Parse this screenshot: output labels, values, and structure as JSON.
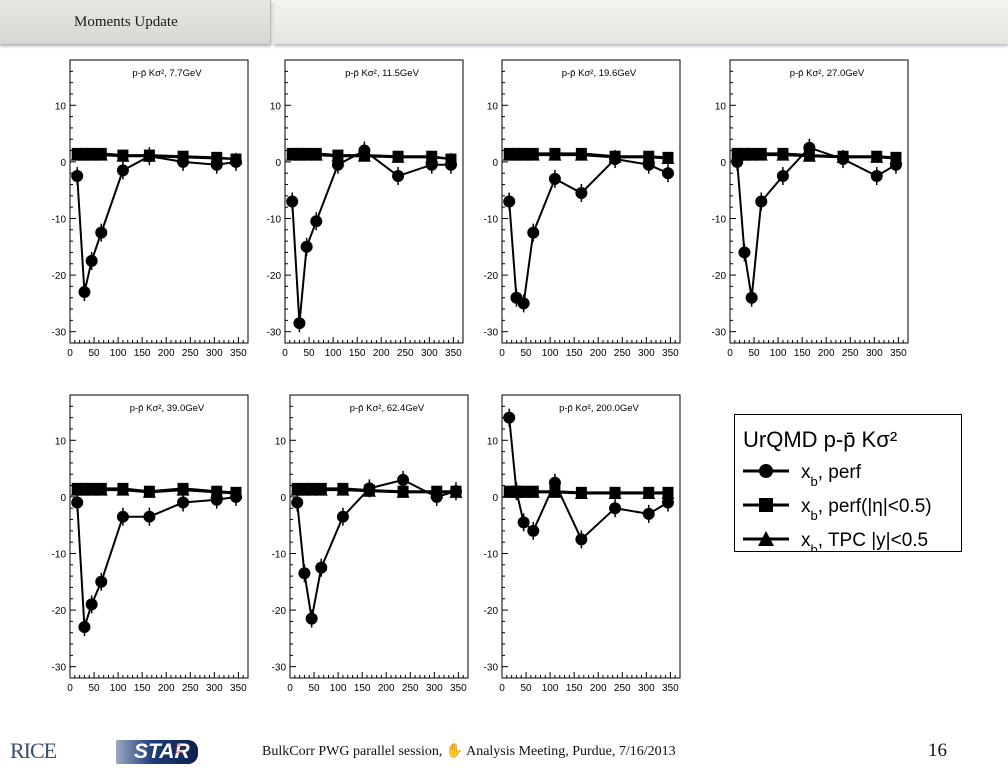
{
  "header": {
    "title": "Moments Update"
  },
  "footer": {
    "logo_left": "RICE",
    "logo_right": "STAR",
    "text": "BulkCorr PWG parallel session,  ✋  Analysis Meeting,  Purdue,  7/16/2013",
    "page": "16"
  },
  "legend": {
    "title": "UrQMD p-p̄ Kσ²",
    "entries": [
      {
        "marker": "circle",
        "html": "x<tspan baseline-shift=\"sub\" font-size=\"13\">b</tspan>, perf"
      },
      {
        "marker": "square",
        "html": "x<tspan baseline-shift=\"sub\" font-size=\"13\">b</tspan>, perf(|η|&lt;0.5)"
      },
      {
        "marker": "triangle",
        "html": "x<tspan baseline-shift=\"sub\" font-size=\"13\">b</tspan>, TPC |y|&lt;0.5"
      }
    ]
  },
  "chart_data": [
    {
      "type": "scatter",
      "title": "p-p̄ Kσ², 7.7GeV",
      "xlim": [
        0,
        370
      ],
      "ylim": [
        -32,
        18
      ],
      "xticks": [
        0,
        50,
        100,
        150,
        200,
        250,
        300,
        350
      ],
      "yticks": [
        -30,
        -20,
        -10,
        0,
        10
      ],
      "series": [
        {
          "marker": "circle",
          "x": [
            15,
            30,
            45,
            65,
            110,
            165,
            235,
            305,
            345
          ],
          "y": [
            -2.5,
            -23,
            -17.5,
            -12.5,
            -1.5,
            1,
            0,
            -0.5,
            0
          ]
        },
        {
          "marker": "square",
          "x": [
            15,
            30,
            45,
            65,
            110,
            165,
            235,
            305,
            345
          ],
          "y": [
            1.5,
            1.5,
            1.5,
            1.5,
            1.2,
            1.2,
            1,
            0.8,
            0.5
          ]
        },
        {
          "marker": "triangle",
          "x": [
            15,
            30,
            45,
            65,
            110,
            165,
            235,
            305,
            345
          ],
          "y": [
            1.2,
            1.2,
            1.2,
            1.2,
            1,
            1,
            0.8,
            0.6,
            0.5
          ]
        }
      ]
    },
    {
      "type": "scatter",
      "title": "p-p̄ Kσ², 11.5GeV",
      "xlim": [
        0,
        370
      ],
      "ylim": [
        -32,
        18
      ],
      "xticks": [
        0,
        50,
        100,
        150,
        200,
        250,
        300,
        350
      ],
      "yticks": [
        -30,
        -20,
        -10,
        0,
        10
      ],
      "series": [
        {
          "marker": "circle",
          "x": [
            15,
            30,
            45,
            65,
            110,
            165,
            235,
            305,
            345
          ],
          "y": [
            -7,
            -28.5,
            -15,
            -10.5,
            -0.5,
            2,
            -2.5,
            -0.5,
            -0.5
          ]
        },
        {
          "marker": "square",
          "x": [
            15,
            30,
            45,
            65,
            110,
            165,
            235,
            305,
            345
          ],
          "y": [
            1.5,
            1.5,
            1.5,
            1.5,
            1.2,
            1.2,
            1,
            1,
            0.5
          ]
        },
        {
          "marker": "triangle",
          "x": [
            15,
            30,
            45,
            65,
            110,
            165,
            235,
            305,
            345
          ],
          "y": [
            1.2,
            1.2,
            1.2,
            1.2,
            1,
            1,
            0.8,
            0.8,
            0.5
          ]
        }
      ]
    },
    {
      "type": "scatter",
      "title": "p-p̄ Kσ², 19.6GeV",
      "xlim": [
        0,
        370
      ],
      "ylim": [
        -32,
        18
      ],
      "xticks": [
        0,
        50,
        100,
        150,
        200,
        250,
        300,
        350
      ],
      "yticks": [
        -30,
        -20,
        -10,
        0,
        10
      ],
      "series": [
        {
          "marker": "circle",
          "x": [
            15,
            30,
            45,
            65,
            110,
            165,
            235,
            305,
            345
          ],
          "y": [
            -7,
            -24,
            -25,
            -12.5,
            -3,
            -5.5,
            0.5,
            -0.5,
            -2
          ]
        },
        {
          "marker": "square",
          "x": [
            15,
            30,
            45,
            65,
            110,
            165,
            235,
            305,
            345
          ],
          "y": [
            1.5,
            1.5,
            1.5,
            1.5,
            1.5,
            1.5,
            1,
            1,
            0.8
          ]
        },
        {
          "marker": "triangle",
          "x": [
            15,
            30,
            45,
            65,
            110,
            165,
            235,
            305,
            345
          ],
          "y": [
            1.2,
            1.2,
            1.2,
            1.2,
            1.2,
            1.2,
            0.8,
            0.8,
            0.6
          ]
        }
      ]
    },
    {
      "type": "scatter",
      "title": "p-p̄ Kσ², 27.0GeV",
      "xlim": [
        0,
        370
      ],
      "ylim": [
        -32,
        18
      ],
      "xticks": [
        0,
        50,
        100,
        150,
        200,
        250,
        300,
        350
      ],
      "yticks": [
        -30,
        -20,
        -10,
        0,
        10
      ],
      "series": [
        {
          "marker": "circle",
          "x": [
            15,
            30,
            45,
            65,
            110,
            165,
            235,
            305,
            345
          ],
          "y": [
            0,
            -16,
            -24,
            -7,
            -2.5,
            2.5,
            0.5,
            -2.5,
            -0.5
          ]
        },
        {
          "marker": "square",
          "x": [
            15,
            30,
            45,
            65,
            110,
            165,
            235,
            305,
            345
          ],
          "y": [
            1.5,
            1.5,
            1.5,
            1.5,
            1.5,
            1.2,
            1,
            1,
            0.8
          ]
        },
        {
          "marker": "triangle",
          "x": [
            15,
            30,
            45,
            65,
            110,
            165,
            235,
            305,
            345
          ],
          "y": [
            1.2,
            1.2,
            1.2,
            1.2,
            1.2,
            1,
            0.8,
            0.8,
            0.6
          ]
        }
      ]
    },
    {
      "type": "scatter",
      "title": "p-p̄ Kσ², 39.0GeV",
      "xlim": [
        0,
        370
      ],
      "ylim": [
        -32,
        18
      ],
      "xticks": [
        0,
        50,
        100,
        150,
        200,
        250,
        300,
        350
      ],
      "yticks": [
        -30,
        -20,
        -10,
        0,
        10
      ],
      "series": [
        {
          "marker": "circle",
          "x": [
            15,
            30,
            45,
            65,
            110,
            165,
            235,
            305,
            345
          ],
          "y": [
            -1,
            -23,
            -19,
            -15,
            -3.5,
            -3.5,
            -1,
            -0.5,
            0
          ]
        },
        {
          "marker": "square",
          "x": [
            15,
            30,
            45,
            65,
            110,
            165,
            235,
            305,
            345
          ],
          "y": [
            1.5,
            1.5,
            1.5,
            1.5,
            1.5,
            1,
            1.5,
            1,
            0.8
          ]
        },
        {
          "marker": "triangle",
          "x": [
            15,
            30,
            45,
            65,
            110,
            165,
            235,
            305,
            345
          ],
          "y": [
            1.2,
            1.2,
            1.2,
            1.2,
            1.2,
            0.8,
            1.2,
            0.8,
            0.6
          ]
        }
      ]
    },
    {
      "type": "scatter",
      "title": "p-p̄ Kσ², 62.4GeV",
      "xlim": [
        0,
        370
      ],
      "ylim": [
        -32,
        18
      ],
      "xticks": [
        0,
        50,
        100,
        150,
        200,
        250,
        300,
        350
      ],
      "yticks": [
        -30,
        -20,
        -10,
        0,
        10
      ],
      "series": [
        {
          "marker": "circle",
          "x": [
            15,
            30,
            45,
            65,
            110,
            165,
            235,
            305,
            345
          ],
          "y": [
            -1,
            -13.5,
            -21.5,
            -12.5,
            -3.5,
            1.5,
            3,
            0,
            1
          ]
        },
        {
          "marker": "square",
          "x": [
            15,
            30,
            45,
            65,
            110,
            165,
            235,
            305,
            345
          ],
          "y": [
            1.5,
            1.5,
            1.5,
            1.5,
            1.5,
            1.2,
            1,
            1,
            1
          ]
        },
        {
          "marker": "triangle",
          "x": [
            15,
            30,
            45,
            65,
            110,
            165,
            235,
            305,
            345
          ],
          "y": [
            1.2,
            1.2,
            1.2,
            1.2,
            1.2,
            1,
            0.8,
            0.8,
            0.8
          ]
        }
      ]
    },
    {
      "type": "scatter",
      "title": "p-p̄ Kσ², 200.0GeV",
      "xlim": [
        0,
        370
      ],
      "ylim": [
        -32,
        18
      ],
      "xticks": [
        0,
        50,
        100,
        150,
        200,
        250,
        300,
        350
      ],
      "yticks": [
        -30,
        -20,
        -10,
        0,
        10
      ],
      "series": [
        {
          "marker": "circle",
          "x": [
            15,
            30,
            45,
            65,
            110,
            165,
            235,
            305,
            345
          ],
          "y": [
            14,
            1,
            -4.5,
            -6,
            2.5,
            -7.5,
            -2,
            -3,
            -1
          ]
        },
        {
          "marker": "square",
          "x": [
            15,
            30,
            45,
            65,
            110,
            165,
            235,
            305,
            345
          ],
          "y": [
            1,
            1,
            1,
            1,
            1,
            0.8,
            0.8,
            0.8,
            0.8
          ]
        },
        {
          "marker": "triangle",
          "x": [
            15,
            30,
            45,
            65,
            110,
            165,
            235,
            305,
            345
          ],
          "y": [
            0.8,
            0.8,
            0.8,
            0.8,
            0.8,
            0.6,
            0.6,
            0.6,
            0.6
          ]
        }
      ]
    }
  ]
}
